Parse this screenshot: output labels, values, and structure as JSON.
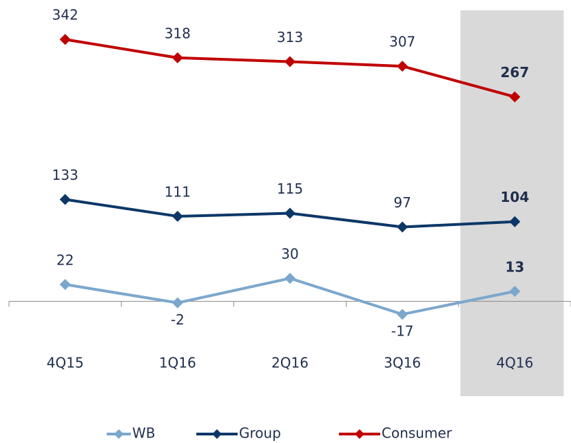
{
  "chart_data": {
    "type": "line",
    "categories": [
      "4Q15",
      "1Q16",
      "2Q16",
      "3Q16",
      "4Q16"
    ],
    "series": [
      {
        "name": "WB",
        "color": "#7ba7cc",
        "values": [
          22,
          -2,
          30,
          -17,
          13
        ]
      },
      {
        "name": "Group",
        "color": "#0d3768",
        "values": [
          133,
          111,
          115,
          97,
          104
        ]
      },
      {
        "name": "Consumer",
        "color": "#c00000",
        "values": [
          342,
          318,
          313,
          307,
          267
        ]
      }
    ],
    "ylim": [
      -60,
      380
    ]
  }
}
